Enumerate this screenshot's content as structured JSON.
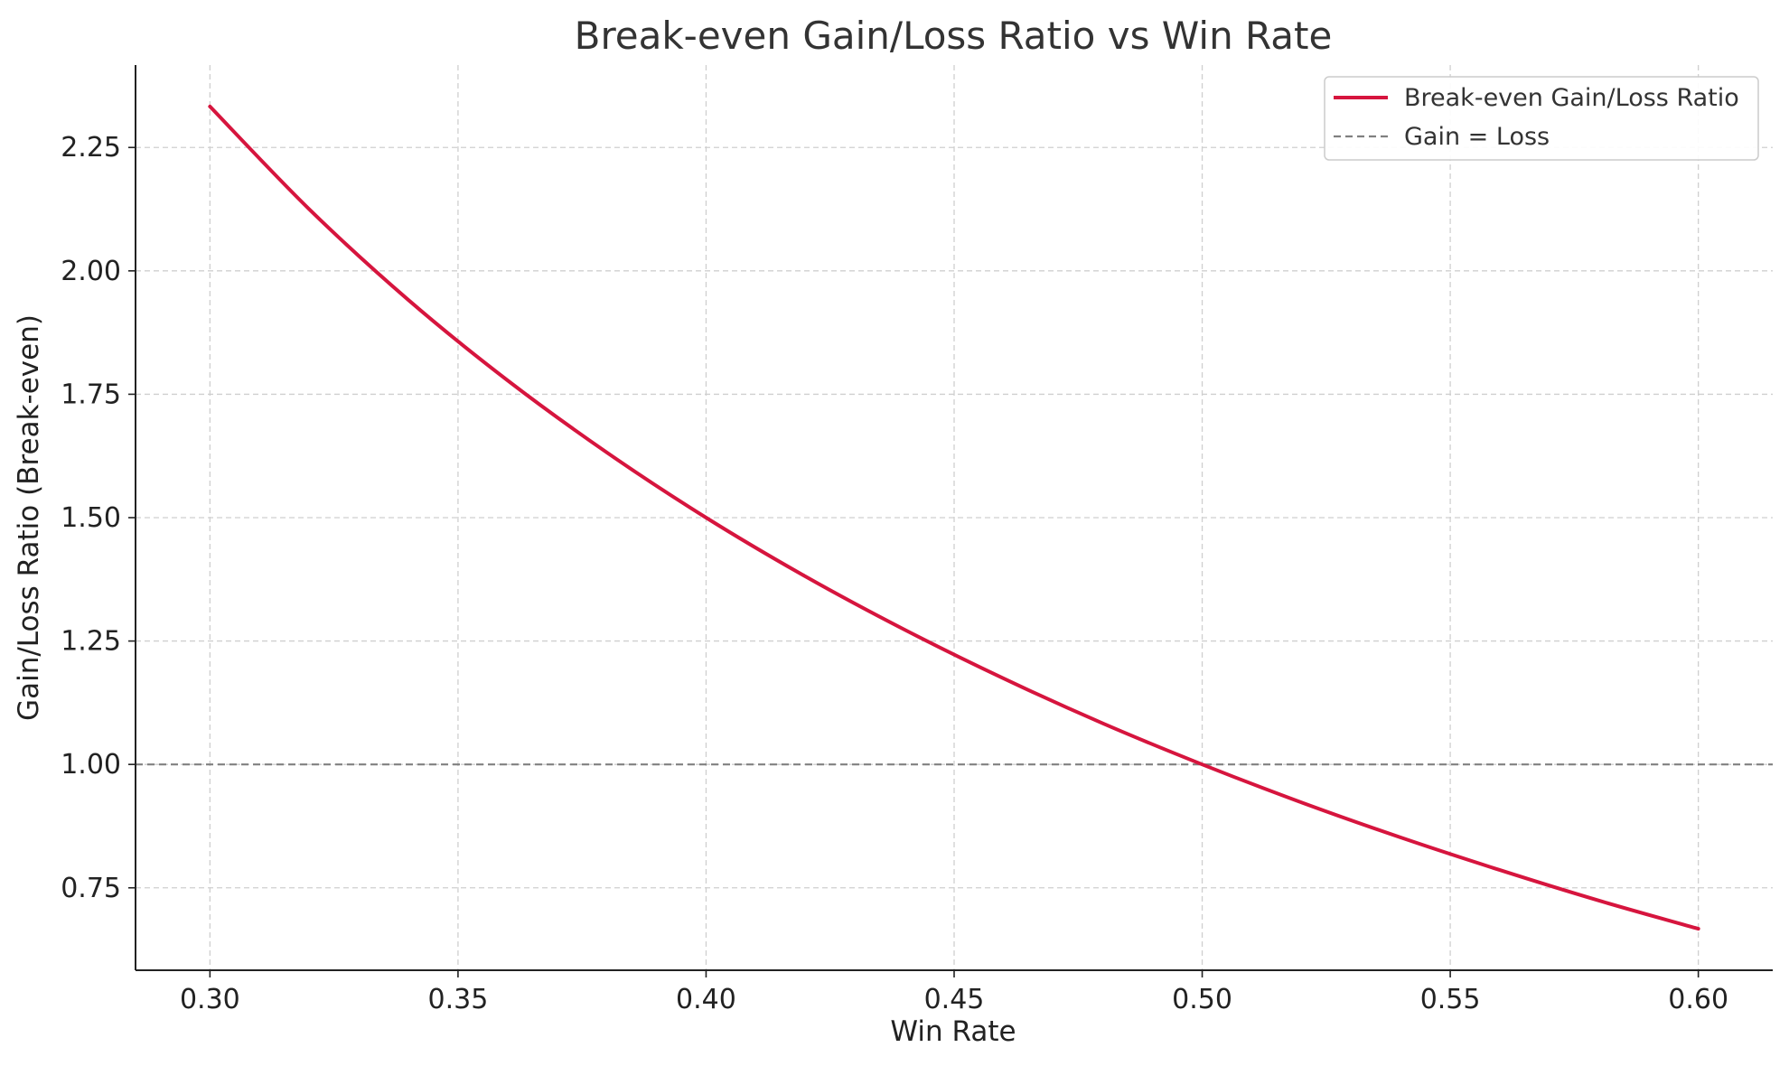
{
  "chart_data": {
    "type": "line",
    "title": "Break-even Gain/Loss Ratio vs Win Rate",
    "xlabel": "Win Rate",
    "ylabel": "Gain/Loss Ratio (Break-even)",
    "xlim": [
      0.285,
      0.615
    ],
    "ylim": [
      0.583,
      2.417
    ],
    "xticks": [
      "0.30",
      "0.35",
      "0.40",
      "0.45",
      "0.50",
      "0.55",
      "0.60"
    ],
    "yticks": [
      "0.75",
      "1.00",
      "1.25",
      "1.50",
      "1.75",
      "2.00",
      "2.25"
    ],
    "grid": true,
    "legend_position": "top-right",
    "series": [
      {
        "name": "Break-even Gain/Loss Ratio",
        "style": "solid",
        "color": "#d6153e",
        "x": [
          0.3,
          0.32,
          0.34,
          0.36,
          0.38,
          0.4,
          0.42,
          0.44,
          0.46,
          0.48,
          0.5,
          0.52,
          0.54,
          0.56,
          0.58,
          0.6
        ],
        "y": [
          2.333,
          2.125,
          1.941,
          1.778,
          1.632,
          1.5,
          1.381,
          1.273,
          1.174,
          1.083,
          1.0,
          0.923,
          0.852,
          0.786,
          0.724,
          0.667
        ]
      },
      {
        "name": "Gain = Loss",
        "style": "dashed",
        "color": "#808080",
        "y_constant": 1.0
      }
    ]
  }
}
